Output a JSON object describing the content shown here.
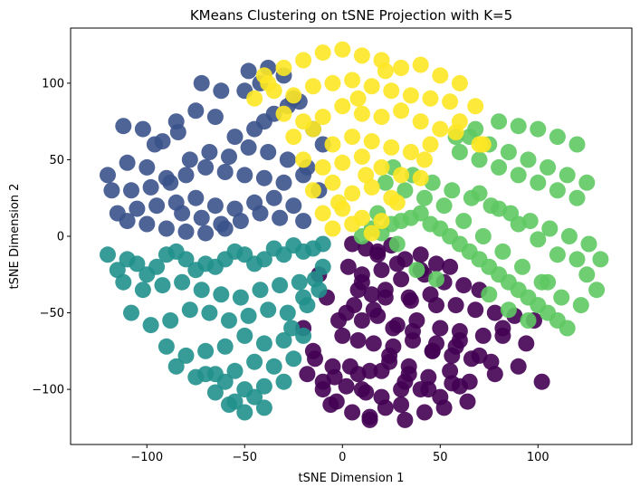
{
  "chart_data": {
    "type": "scatter",
    "title": "KMeans Clustering on tSNE Projection with K=5",
    "xlabel": "tSNE Dimension 1",
    "ylabel": "tSNE Dimension 2",
    "xlim": [
      -139,
      148
    ],
    "ylim": [
      -136,
      136
    ],
    "xticks": [
      -100,
      -50,
      0,
      50,
      100
    ],
    "yticks": [
      -100,
      -50,
      0,
      50,
      100
    ],
    "xtick_labels": [
      "−100",
      "−50",
      "0",
      "50",
      "100"
    ],
    "ytick_labels": [
      "−100",
      "−50",
      "0",
      "50",
      "100"
    ],
    "grid": false,
    "legend": "none",
    "colors": {
      "cluster_0": "#440154",
      "cluster_1": "#3b528b",
      "cluster_2": "#21918c",
      "cluster_3": "#5ec962",
      "cluster_4": "#fde725"
    },
    "series": [
      {
        "color": "#440154",
        "x": [
          5,
          12,
          18,
          25,
          32,
          40,
          48,
          55,
          3,
          10,
          20,
          30,
          42,
          52,
          62,
          70,
          8,
          15,
          22,
          35,
          45,
          58,
          68,
          78,
          88,
          98,
          2,
          10,
          18,
          28,
          38,
          50,
          60,
          72,
          82,
          0,
          8,
          16,
          26,
          36,
          46,
          56,
          66,
          76,
          4,
          14,
          24,
          34,
          44,
          55,
          65,
          78,
          90,
          102,
          -8,
          -2,
          -12,
          -20,
          -15,
          -5,
          10,
          20,
          30,
          40,
          50,
          60,
          -10,
          -3,
          5,
          14,
          22,
          32,
          42,
          52,
          64,
          -18,
          -10,
          2,
          12,
          24,
          34,
          46,
          58,
          70,
          82,
          94,
          6,
          16,
          26,
          36,
          48,
          60,
          -4,
          8,
          20,
          32,
          44,
          56,
          10,
          22,
          34,
          48,
          -14,
          -6,
          18,
          28,
          40,
          30,
          14
        ],
        "y": [
          -5,
          -8,
          -10,
          -6,
          -15,
          -12,
          -18,
          -20,
          -20,
          -25,
          -22,
          -28,
          -25,
          -30,
          -32,
          -35,
          -35,
          -38,
          -40,
          -42,
          -38,
          -45,
          -48,
          -50,
          -52,
          -55,
          -50,
          -55,
          -52,
          -58,
          -55,
          -60,
          -62,
          -65,
          -60,
          -65,
          -68,
          -70,
          -72,
          -68,
          -75,
          -78,
          -80,
          -82,
          -85,
          -88,
          -82,
          -90,
          -92,
          -88,
          -95,
          -90,
          -85,
          -95,
          -40,
          -55,
          -25,
          -60,
          -75,
          -85,
          -100,
          -105,
          -110,
          -100,
          -105,
          -98,
          -100,
          -108,
          -115,
          -118,
          -112,
          -120,
          -115,
          -112,
          -108,
          -90,
          -95,
          -98,
          -102,
          -78,
          -85,
          -75,
          -72,
          -78,
          -65,
          -70,
          -45,
          -48,
          -60,
          -62,
          -70,
          -68,
          -92,
          -90,
          -88,
          -95,
          -100,
          -96,
          -30,
          -35,
          -40,
          -45,
          -80,
          -110,
          -12,
          -18,
          -22,
          -100,
          -120
        ]
      },
      {
        "color": "#3b528b",
        "x": [
          -60,
          -70,
          -80,
          -90,
          -100,
          -110,
          -115,
          -105,
          -95,
          -85,
          -75,
          -65,
          -55,
          -45,
          -35,
          -25,
          -30,
          -40,
          -50,
          -60,
          -70,
          -80,
          -90,
          -100,
          -110,
          -120,
          -118,
          -108,
          -98,
          -88,
          -78,
          -68,
          -58,
          -48,
          -38,
          -28,
          -18,
          -12,
          -20,
          -32,
          -42,
          -52,
          -62,
          -72,
          -82,
          -92,
          -102,
          -112,
          -55,
          -45,
          -40,
          -35,
          -28,
          -22,
          -65,
          -75,
          -85,
          -50,
          -42,
          -30,
          -25,
          -15,
          -10,
          -20,
          -62,
          -72,
          -96,
          -84,
          -38,
          -48
        ],
        "y": [
          5,
          2,
          3,
          5,
          8,
          10,
          15,
          18,
          20,
          22,
          25,
          20,
          18,
          22,
          25,
          20,
          35,
          38,
          40,
          42,
          45,
          40,
          38,
          45,
          48,
          40,
          30,
          30,
          32,
          35,
          50,
          55,
          52,
          58,
          55,
          50,
          45,
          30,
          10,
          12,
          15,
          10,
          8,
          12,
          15,
          62,
          70,
          72,
          65,
          70,
          75,
          80,
          85,
          88,
          78,
          82,
          75,
          95,
          100,
          105,
          90,
          70,
          60,
          40,
          95,
          100,
          60,
          68,
          110,
          108
        ]
      },
      {
        "color": "#21918c",
        "x": [
          -10,
          -15,
          -20,
          -25,
          -30,
          -35,
          -40,
          -45,
          -50,
          -55,
          -60,
          -65,
          -70,
          -75,
          -80,
          -85,
          -90,
          -95,
          -100,
          -105,
          -110,
          -115,
          -120,
          -112,
          -102,
          -92,
          -82,
          -72,
          -62,
          -52,
          -42,
          -32,
          -22,
          -14,
          -18,
          -28,
          -38,
          -48,
          -58,
          -68,
          -78,
          -88,
          -98,
          -108,
          -20,
          -30,
          -40,
          -50,
          -60,
          -70,
          -80,
          -90,
          -25,
          -35,
          -45,
          -55,
          -65,
          -75,
          -85,
          -30,
          -40,
          -50,
          -60,
          -70,
          -45,
          -55,
          -65,
          -40,
          -50,
          -58,
          -20,
          -26,
          -10,
          -12
        ],
        "y": [
          -5,
          -8,
          -10,
          -6,
          -12,
          -8,
          -15,
          -18,
          -12,
          -10,
          -15,
          -20,
          -18,
          -22,
          -15,
          -10,
          -12,
          -20,
          -25,
          -18,
          -15,
          -22,
          -12,
          -30,
          -35,
          -32,
          -30,
          -35,
          -38,
          -40,
          -35,
          -32,
          -30,
          -28,
          -45,
          -50,
          -48,
          -52,
          -55,
          -50,
          -48,
          -55,
          -58,
          -50,
          -65,
          -68,
          -70,
          -65,
          -72,
          -75,
          -78,
          -72,
          -80,
          -85,
          -82,
          -88,
          -90,
          -92,
          -85,
          -95,
          -98,
          -100,
          -95,
          -90,
          -105,
          -108,
          -102,
          -112,
          -115,
          -110,
          -40,
          -60,
          -20,
          -35
        ]
      },
      {
        "color": "#5ec962",
        "x": [
          10,
          15,
          20,
          25,
          30,
          35,
          40,
          45,
          50,
          55,
          60,
          65,
          70,
          75,
          80,
          85,
          90,
          95,
          100,
          105,
          110,
          115,
          120,
          125,
          130,
          122,
          112,
          102,
          92,
          82,
          72,
          62,
          52,
          42,
          32,
          22,
          26,
          36,
          46,
          56,
          66,
          76,
          86,
          96,
          106,
          116,
          126,
          60,
          70,
          80,
          90,
          100,
          110,
          120,
          65,
          75,
          85,
          95,
          105,
          115,
          125,
          80,
          90,
          100,
          110,
          120,
          70,
          80,
          90,
          100,
          110,
          75,
          85,
          95,
          105,
          132,
          68,
          58,
          48,
          38,
          28,
          18
        ],
        "y": [
          0,
          5,
          2,
          8,
          10,
          12,
          15,
          8,
          5,
          0,
          -5,
          -10,
          -15,
          -20,
          -25,
          -30,
          -35,
          -40,
          -45,
          -50,
          -55,
          -60,
          -15,
          -25,
          -35,
          -45,
          -40,
          -30,
          -20,
          -10,
          0,
          10,
          20,
          25,
          30,
          35,
          45,
          40,
          35,
          30,
          25,
          20,
          15,
          10,
          5,
          0,
          -5,
          55,
          50,
          45,
          40,
          35,
          30,
          25,
          65,
          60,
          55,
          50,
          45,
          40,
          35,
          75,
          72,
          70,
          65,
          60,
          28,
          18,
          8,
          -2,
          -12,
          -38,
          -48,
          -55,
          -30,
          -15,
          70,
          65,
          -28,
          -22,
          -5,
          15
        ]
      },
      {
        "color": "#fde725",
        "x": [
          -40,
          -30,
          -20,
          -10,
          0,
          10,
          20,
          30,
          40,
          50,
          60,
          -35,
          -25,
          -15,
          -5,
          5,
          15,
          25,
          35,
          45,
          55,
          -30,
          -20,
          -10,
          0,
          10,
          20,
          30,
          40,
          50,
          60,
          70,
          -25,
          -15,
          -5,
          5,
          15,
          25,
          35,
          45,
          -20,
          -10,
          0,
          10,
          20,
          30,
          40,
          -15,
          -5,
          5,
          15,
          25,
          -10,
          0,
          10,
          20,
          -5,
          5,
          15,
          -45,
          -38,
          68,
          72,
          42,
          58,
          12,
          28,
          -2,
          8,
          22
        ],
        "y": [
          105,
          110,
          115,
          120,
          122,
          118,
          115,
          110,
          112,
          105,
          100,
          95,
          92,
          98,
          100,
          102,
          98,
          95,
          92,
          90,
          88,
          80,
          75,
          78,
          85,
          80,
          78,
          82,
          75,
          70,
          75,
          60,
          65,
          70,
          60,
          65,
          62,
          58,
          55,
          60,
          50,
          45,
          48,
          52,
          45,
          40,
          38,
          30,
          35,
          28,
          32,
          25,
          15,
          18,
          12,
          10,
          5,
          8,
          2,
          90,
          100,
          85,
          60,
          50,
          68,
          40,
          22,
          22,
          90,
          108
        ]
      }
    ]
  }
}
